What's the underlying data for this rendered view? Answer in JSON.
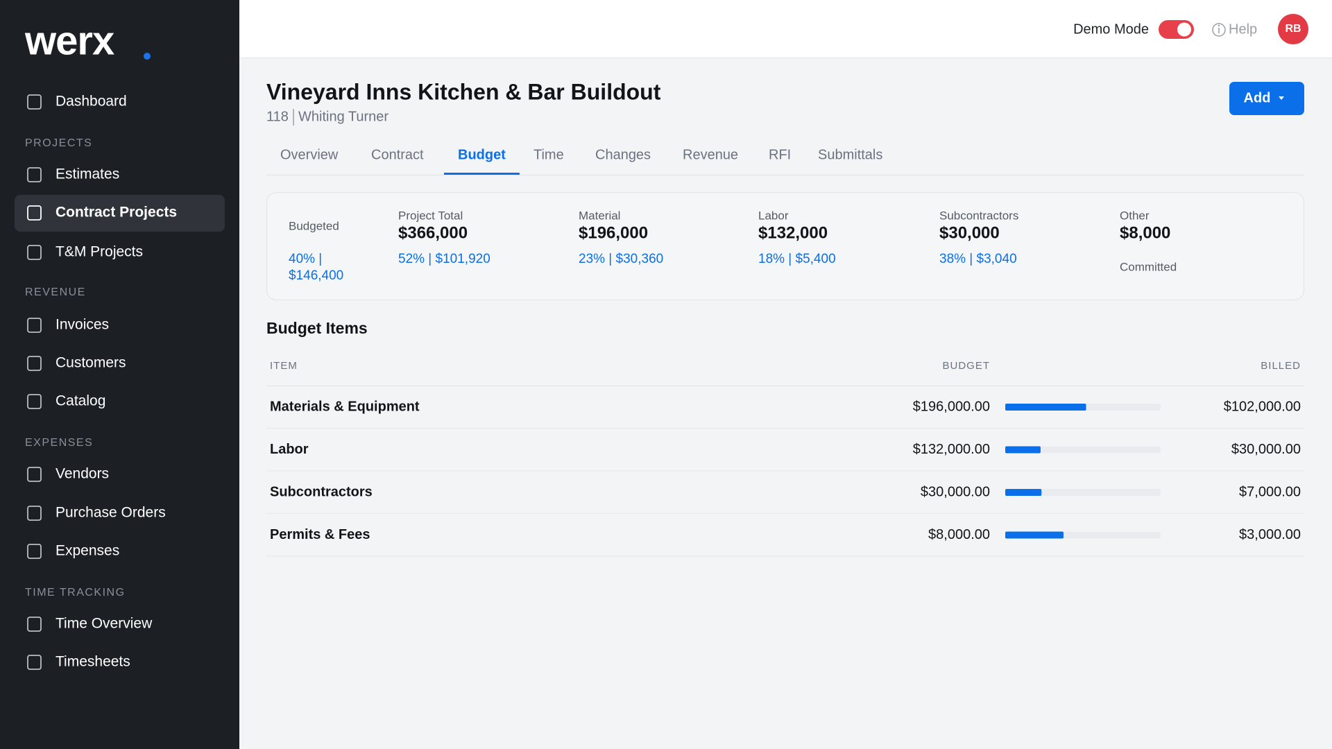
{
  "sidebar": {
    "logo": "werx",
    "items": [
      {
        "label": "Dashboard"
      },
      {
        "section": "PROJECTS"
      },
      {
        "label": "Estimates"
      },
      {
        "label": "Contract Projects",
        "active": true
      },
      {
        "label": "T&M Projects"
      },
      {
        "section": "REVENUE"
      },
      {
        "label": "Invoices"
      },
      {
        "label": "Customers"
      },
      {
        "label": "Catalog"
      },
      {
        "section": "EXPENSES"
      },
      {
        "label": "Vendors"
      },
      {
        "label": "Purchase Orders"
      },
      {
        "label": "Expenses"
      },
      {
        "section": "TIME TRACKING"
      },
      {
        "label": "Time Overview"
      },
      {
        "label": "Timesheets"
      }
    ]
  },
  "topbar": {
    "demo_mode": "Demo Mode",
    "help": "Help",
    "avatar": "RB"
  },
  "project": {
    "title": "Vineyard Inns Kitchen & Bar Buildout",
    "number": "118",
    "client": "Whiting Turner",
    "add_button": "Add"
  },
  "tabs": {
    "items": [
      "Overview",
      "Contract",
      "Budget",
      "Time",
      "Changes",
      "Revenue",
      "RFI",
      "Submittals"
    ],
    "active": 2
  },
  "summary": [
    {
      "label": "Budgeted",
      "lines": [
        "40% |",
        "$146,400"
      ]
    },
    {
      "label": "Project Total",
      "value": "$366,000",
      "detail": "52% | $101,920"
    },
    {
      "label": "Material",
      "value": "$196,000",
      "detail": "23% | $30,360"
    },
    {
      "label": "Labor",
      "value": "$132,000",
      "detail": "18% | $5,400"
    },
    {
      "label": "Subcontractors",
      "value": "$30,000",
      "detail": "38% | $3,040"
    },
    {
      "label": "Other",
      "value": "$8,000",
      "note": "Committed"
    }
  ],
  "budget_table": {
    "title": "Budget Items",
    "columns": [
      "ITEM",
      "BUDGET",
      "BILLED"
    ],
    "rows": [
      {
        "item": "Materials & Equipment",
        "budget": {
          "value": 196000,
          "label": "$196,000.00"
        },
        "billed": {
          "value": 102000,
          "label": "$102,000.00"
        }
      },
      {
        "item": "Labor",
        "budget": {
          "value": 132000,
          "label": "$132,000.00"
        },
        "billed": {
          "value": 30000,
          "label": "$30,000.00"
        }
      },
      {
        "item": "Subcontractors",
        "budget": {
          "value": 30000,
          "label": "$30,000.00"
        },
        "billed": {
          "value": 7000,
          "label": "$7,000.00"
        }
      },
      {
        "item": "Permits & Fees",
        "budget": {
          "value": 8000,
          "label": "$8,000.00"
        },
        "billed": {
          "value": 3000,
          "label": "$3,000.00"
        }
      }
    ]
  }
}
